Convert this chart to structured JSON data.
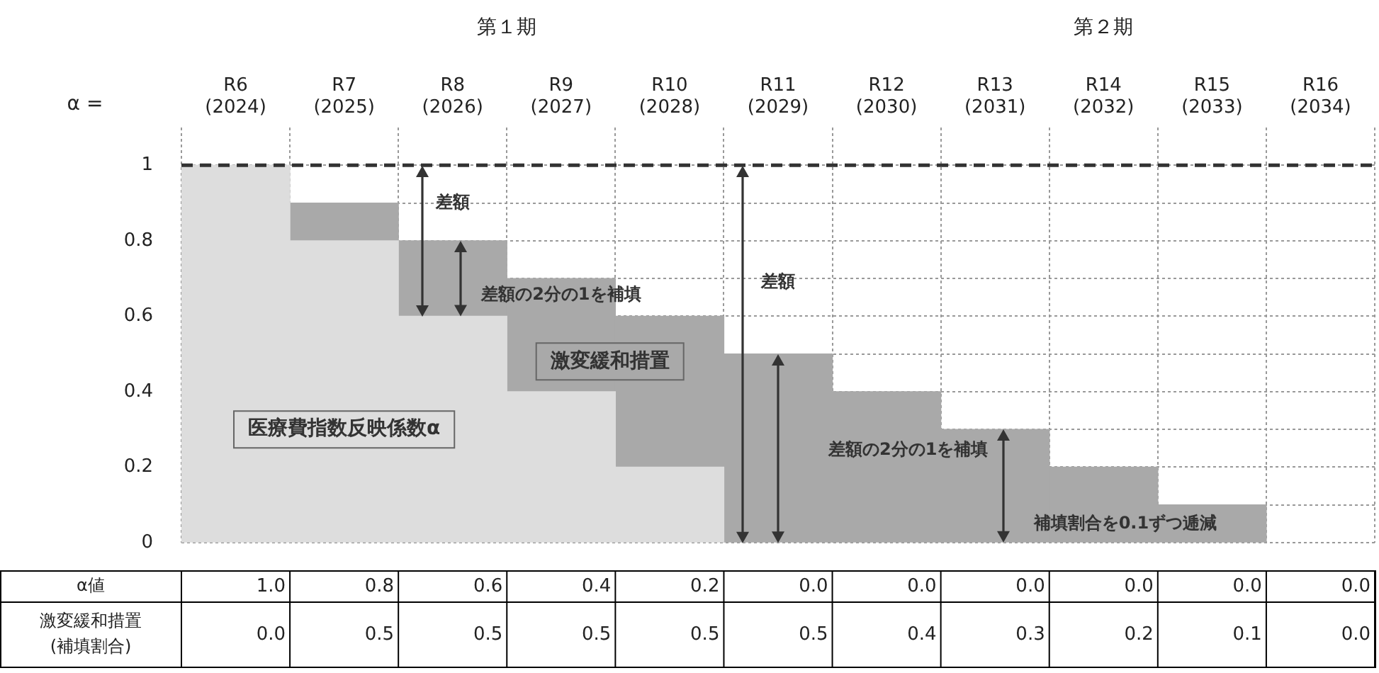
{
  "chart_data": {
    "type": "bar",
    "stacked": true,
    "ylabel": "α =",
    "categories": [
      "R6 (2024)",
      "R7 (2025)",
      "R8 (2026)",
      "R9 (2027)",
      "R10 (2028)",
      "R11 (2029)",
      "R12 (2030)",
      "R13 (2031)",
      "R14 (2032)",
      "R15 (2033)",
      "R16 (2034)"
    ],
    "series": [
      {
        "name": "医療費指数反映係数α",
        "color": "#dddddd",
        "values": [
          1,
          0.8,
          0.6,
          0.4,
          0.2,
          0,
          0,
          0,
          0,
          0,
          0
        ],
        "value_labels": [
          "1.0",
          "0.8",
          "0.6",
          "0.4",
          "0.2",
          "0.0",
          "0.0",
          "0.0",
          "0.0",
          "0.0",
          "0.0"
        ]
      },
      {
        "name": "激変緩和措置",
        "color": "#a9a9a9",
        "values": [
          0,
          0.1,
          0.2,
          0.3,
          0.4,
          0.5,
          0.4,
          0.3,
          0.2,
          0.1,
          0
        ]
      }
    ],
    "ylim": [
      0,
      1.1
    ],
    "yticks": [
      0,
      {
        "value": 0.1,
        "label": null
      },
      0.2,
      {
        "value": 0.3,
        "label": null
      },
      0.4,
      {
        "value": 0.5,
        "label": null
      },
      0.6,
      {
        "value": 0.7,
        "label": null
      },
      0.8,
      {
        "value": 0.9,
        "label": null
      },
      1
    ],
    "grid": true,
    "legend": false,
    "ref_lines": [
      {
        "axis": "y",
        "value": 1,
        "color": "#333333",
        "line_style": "dashed"
      }
    ],
    "annotations": [
      "第１期",
      "第２期",
      "差額",
      "差額の2分の1を補填",
      "差額",
      "差額の2分の1を補填",
      "補填割合を0.1ずつ逓減",
      "α値",
      "激変緩和措置 (補填割合)",
      "0.0",
      "0.5",
      "0.5",
      "0.5",
      "0.5",
      "0.5",
      "0.4",
      "0.3",
      "0.2",
      "0.1",
      "0.0"
    ]
  }
}
